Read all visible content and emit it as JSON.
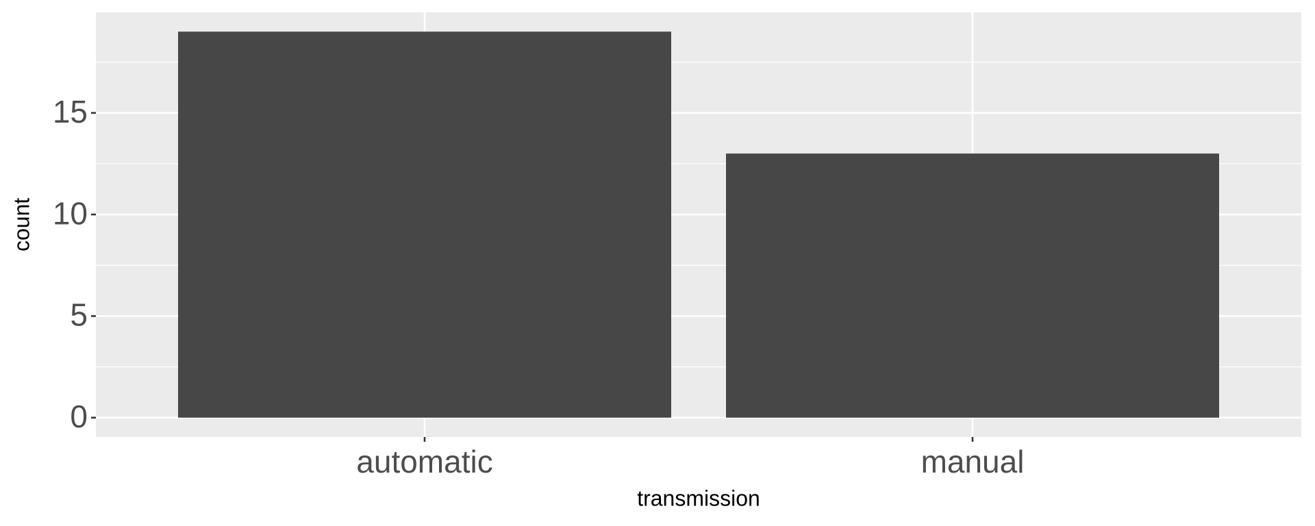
{
  "chart_data": {
    "type": "bar",
    "x_label": "transmission",
    "y_label": "count",
    "categories": [
      "automatic",
      "manual"
    ],
    "values": [
      19,
      13
    ],
    "color": "#474747",
    "ylim": [
      -0.95,
      19.95
    ],
    "yticks": [
      0,
      5,
      10,
      15
    ],
    "grid": true
  }
}
